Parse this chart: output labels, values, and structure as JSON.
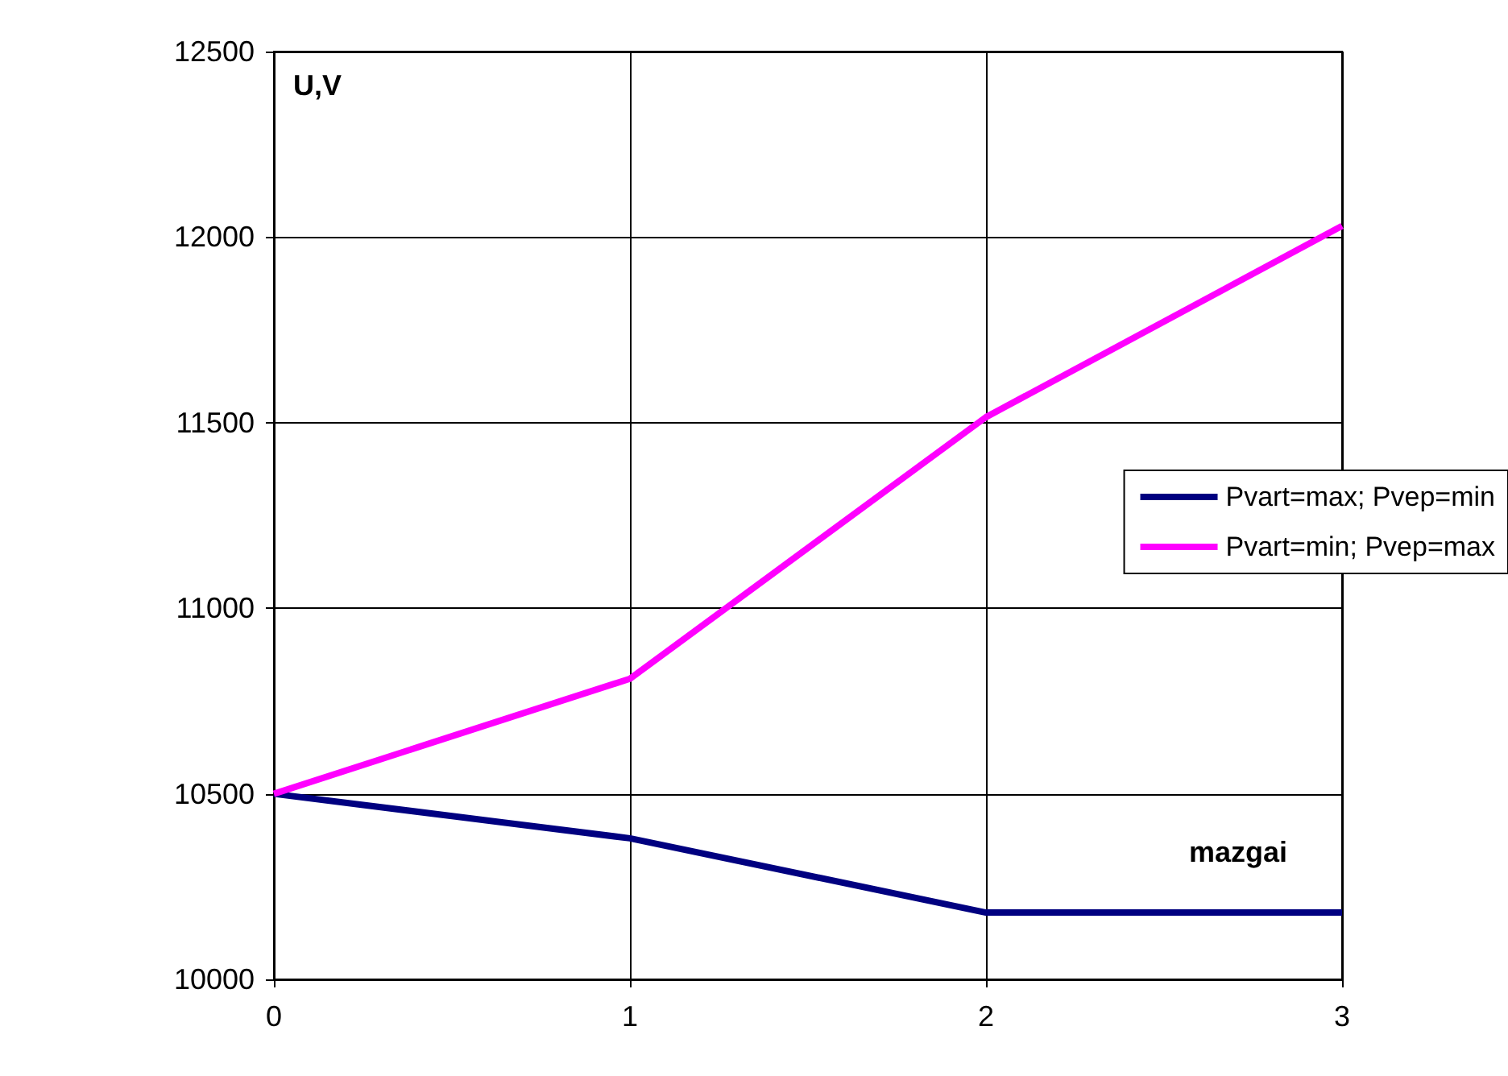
{
  "chart_data": {
    "type": "line",
    "xlabel": "mazgai",
    "ylabel": "U,V",
    "x": [
      0,
      1,
      2,
      3
    ],
    "series": [
      {
        "name": "Pvart=max; Pvep=min",
        "color": "#000080",
        "values": [
          10500,
          10380,
          10180,
          10180
        ]
      },
      {
        "name": "Pvart=min; Pvep=max",
        "color": "#ff00ff",
        "values": [
          10500,
          10810,
          11515,
          12030
        ]
      }
    ],
    "xlim": [
      0,
      3
    ],
    "xticks": [
      0,
      1,
      2,
      3
    ],
    "ylim": [
      10000,
      12500
    ],
    "yticks": [
      10000,
      10500,
      11000,
      11500,
      12000,
      12500
    ],
    "grid": true,
    "legend": "right",
    "marker": "none",
    "line_style": "solid"
  }
}
